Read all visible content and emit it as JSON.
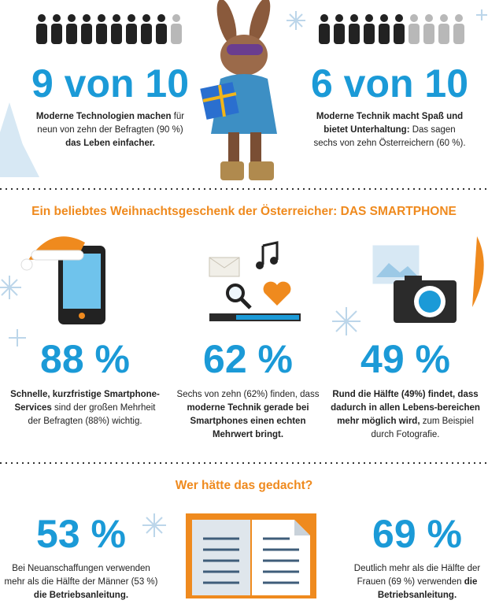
{
  "top": [
    {
      "people": {
        "highlighted": 9,
        "total": 10
      },
      "headline": "9 von 10",
      "text": [
        {
          "text": "Moderne Technologien machen",
          "bold": true
        },
        {
          "text": " für neun von zehn der Befragten (90 %) ",
          "bold": false
        },
        {
          "text": "das Leben einfacher.",
          "bold": true
        }
      ]
    },
    {
      "people": {
        "highlighted": 6,
        "total": 10
      },
      "headline": "6 von 10",
      "text": [
        {
          "text": "Moderne Technik macht Spaß und bietet Unterhaltung:",
          "bold": true
        },
        {
          "text": " Das sagen sechs von zehn Österreichern (60 %).",
          "bold": false
        }
      ]
    }
  ],
  "smartphone": {
    "heading": "Ein beliebtes Weihnachtsgeschenk der Österreicher: DAS SMARTPHONE",
    "stats": [
      {
        "headline": "88 %",
        "text": [
          {
            "text": "Schnelle, kurzfristige Smartphone-Services",
            "bold": true
          },
          {
            "text": " sind der großen Mehrheit der Befragten (88%) wichtig.",
            "bold": false
          }
        ]
      },
      {
        "headline": "62 %",
        "text": [
          {
            "text": "Sechs von zehn (62%) finden, dass ",
            "bold": false
          },
          {
            "text": "moderne Technik gerade bei Smartphones einen echten Mehrwert bringt.",
            "bold": true
          }
        ]
      },
      {
        "headline": "49 %",
        "text": [
          {
            "text": "Rund die Hälfte (49%) findet, dass dadurch in allen Lebens-bereichen mehr möglich wird,",
            "bold": true
          },
          {
            "text": " zum Beispiel durch Fotografie.",
            "bold": false
          }
        ]
      }
    ]
  },
  "surprise": {
    "heading": "Wer hätte das gedacht?",
    "stats": [
      {
        "headline": "53 %",
        "text": [
          {
            "text": "Bei Neuanschaffungen verwenden mehr als die Hälfte der Männer (53 %) ",
            "bold": false
          },
          {
            "text": "die Betriebsanleitung.",
            "bold": true
          }
        ]
      },
      {
        "headline": "69 %",
        "text": [
          {
            "text": "Deutlich mehr als die Hälfte der Frauen (69 %) verwenden ",
            "bold": false
          },
          {
            "text": "die Betriebsanleitung.",
            "bold": true
          }
        ]
      }
    ]
  }
}
